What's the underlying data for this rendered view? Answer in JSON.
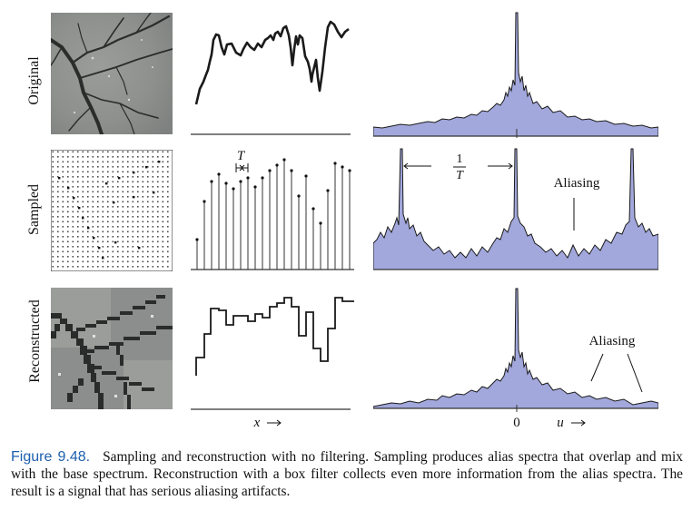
{
  "rows": [
    {
      "label": "Original"
    },
    {
      "label": "Sampled"
    },
    {
      "label": "Reconstructed"
    }
  ],
  "annotations": {
    "period_label": "T",
    "freq_num": "1",
    "freq_den": "T",
    "aliasing_1": "Aliasing",
    "aliasing_2": "Aliasing",
    "x_axis": "x",
    "zero_tick": "0",
    "u_axis": "u"
  },
  "caption": {
    "heading": "Figure 9.48.",
    "text": "Sampling and reconstruction with no filtering. Sampling produces alias spectra that overlap and mix with the base spectrum. Reconstruction with a box filter collects even more information from the alias spectra. The result is a signal that has serious aliasing artifacts."
  },
  "colors": {
    "spectrum_fill": "#a2a8dc",
    "ink": "#111111",
    "caption_heading": "#1d5fae"
  }
}
